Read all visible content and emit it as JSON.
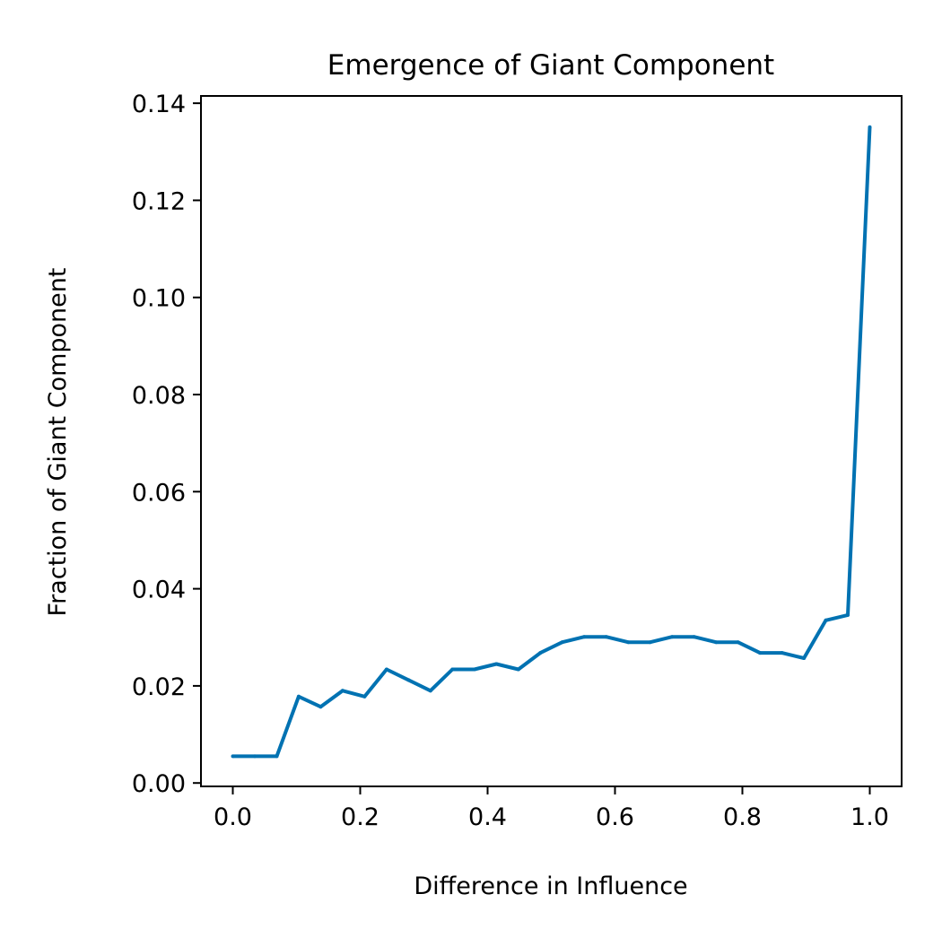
{
  "chart_data": {
    "type": "line",
    "title": "Emergence of Giant Component",
    "xlabel": "Difference in Influence",
    "ylabel": "Fraction of Giant Component",
    "xlim": [
      -0.05,
      1.05
    ],
    "ylim": [
      -0.0007,
      0.1415
    ],
    "xticks": [
      0.0,
      0.2,
      0.4,
      0.6,
      0.8,
      1.0
    ],
    "xtick_labels": [
      "0.0",
      "0.2",
      "0.4",
      "0.6",
      "0.8",
      "1.0"
    ],
    "yticks": [
      0.0,
      0.02,
      0.04,
      0.06,
      0.08,
      0.1,
      0.12,
      0.14
    ],
    "ytick_labels": [
      "0.00",
      "0.02",
      "0.04",
      "0.06",
      "0.08",
      "0.10",
      "0.12",
      "0.14"
    ],
    "grid": false,
    "line_color": "#0072B2",
    "series": [
      {
        "x": [
          0.0,
          0.0345,
          0.069,
          0.1034,
          0.1379,
          0.1724,
          0.2069,
          0.2414,
          0.2759,
          0.3103,
          0.3448,
          0.3793,
          0.4138,
          0.4483,
          0.4828,
          0.5172,
          0.5517,
          0.5862,
          0.6207,
          0.6552,
          0.6897,
          0.7241,
          0.7586,
          0.7931,
          0.8276,
          0.8621,
          0.8966,
          0.931,
          0.9655,
          1.0
        ],
        "y": [
          0.0055,
          0.0055,
          0.0055,
          0.0178,
          0.0157,
          0.019,
          0.0178,
          0.0234,
          0.0212,
          0.019,
          0.0234,
          0.0234,
          0.0245,
          0.0234,
          0.0268,
          0.029,
          0.0301,
          0.0301,
          0.029,
          0.029,
          0.0301,
          0.0301,
          0.029,
          0.029,
          0.0268,
          0.0268,
          0.0257,
          0.0335,
          0.0346,
          0.1351
        ]
      }
    ]
  }
}
